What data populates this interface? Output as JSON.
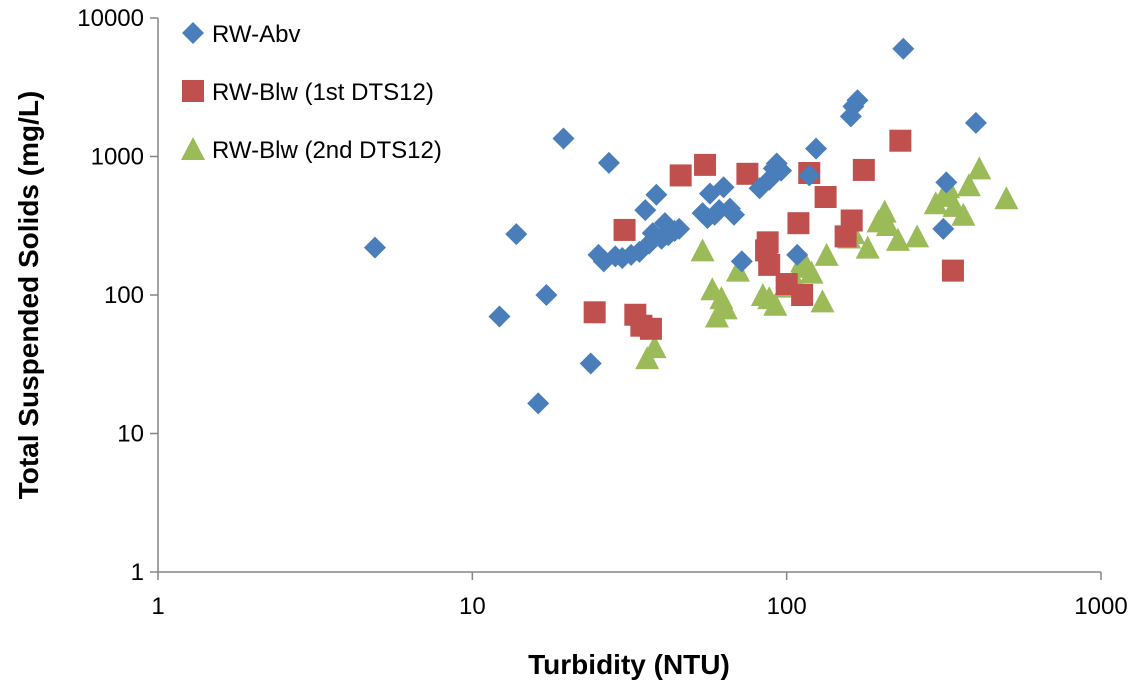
{
  "chart_data": {
    "type": "scatter",
    "title": "",
    "xlabel": "Turbidity (NTU)",
    "ylabel": "Total Suspended Solids (mg/L)",
    "x_scale": "log",
    "y_scale": "log",
    "xlim": [
      1,
      1000
    ],
    "ylim": [
      1,
      10000
    ],
    "x_ticks": [
      1,
      10,
      100,
      1000
    ],
    "x_tick_labels": [
      "1",
      "10",
      "100",
      "1000"
    ],
    "y_ticks": [
      1,
      10,
      100,
      1000,
      10000
    ],
    "y_tick_labels": [
      "1",
      "10",
      "100",
      "1000",
      "10000"
    ],
    "grid": false,
    "legend_position": "top-left",
    "series": [
      {
        "name": "RW-Abv",
        "marker": "diamond",
        "color": "#4a7ebb",
        "points": [
          [
            4.9,
            220
          ],
          [
            12.2,
            70
          ],
          [
            13.8,
            275
          ],
          [
            16.2,
            16.5
          ],
          [
            17.2,
            100
          ],
          [
            19.5,
            1350
          ],
          [
            23.8,
            32
          ],
          [
            25.2,
            195
          ],
          [
            26.2,
            175
          ],
          [
            27.2,
            900
          ],
          [
            28.5,
            190
          ],
          [
            30,
            185
          ],
          [
            32,
            195
          ],
          [
            34,
            205
          ],
          [
            35.5,
            410
          ],
          [
            36.5,
            235
          ],
          [
            37.5,
            280
          ],
          [
            38.5,
            530
          ],
          [
            40,
            255
          ],
          [
            41,
            330
          ],
          [
            42,
            270
          ],
          [
            44,
            290
          ],
          [
            45.5,
            300
          ],
          [
            54,
            390
          ],
          [
            56,
            360
          ],
          [
            57,
            540
          ],
          [
            59,
            380
          ],
          [
            61,
            410
          ],
          [
            63,
            600
          ],
          [
            66,
            420
          ],
          [
            68,
            380
          ],
          [
            72,
            175
          ],
          [
            82,
            590
          ],
          [
            88,
            680
          ],
          [
            91,
            820
          ],
          [
            93,
            890
          ],
          [
            96,
            790
          ],
          [
            108,
            195
          ],
          [
            118,
            730
          ],
          [
            124,
            1140
          ],
          [
            160,
            1950
          ],
          [
            163,
            2300
          ],
          [
            168,
            2550
          ],
          [
            235,
            6000
          ],
          [
            315,
            300
          ],
          [
            322,
            650
          ],
          [
            400,
            1750
          ]
        ]
      },
      {
        "name": "RW-Blw (1st DTS12)",
        "marker": "square",
        "color": "#c0504d",
        "points": [
          [
            24.5,
            75
          ],
          [
            30.5,
            295
          ],
          [
            33,
            72
          ],
          [
            34.5,
            60
          ],
          [
            37,
            57
          ],
          [
            46,
            730
          ],
          [
            55,
            870
          ],
          [
            75,
            750
          ],
          [
            86,
            210
          ],
          [
            87,
            240
          ],
          [
            88,
            165
          ],
          [
            100,
            120
          ],
          [
            109,
            330
          ],
          [
            112,
            100
          ],
          [
            118,
            760
          ],
          [
            133,
            510
          ],
          [
            154,
            265
          ],
          [
            161,
            345
          ],
          [
            176,
            800
          ],
          [
            230,
            1300
          ],
          [
            338,
            150
          ]
        ]
      },
      {
        "name": "RW-Blw (2nd DTS12)",
        "marker": "triangle",
        "color": "#9bbb59",
        "points": [
          [
            36,
            35
          ],
          [
            38,
            42
          ],
          [
            54,
            210
          ],
          [
            58,
            110
          ],
          [
            60,
            70
          ],
          [
            62,
            95
          ],
          [
            64,
            80
          ],
          [
            70,
            150
          ],
          [
            84,
            100
          ],
          [
            88,
            95
          ],
          [
            92,
            85
          ],
          [
            100,
            115
          ],
          [
            106,
            130
          ],
          [
            112,
            175
          ],
          [
            116,
            160
          ],
          [
            120,
            145
          ],
          [
            130,
            90
          ],
          [
            134,
            195
          ],
          [
            158,
            260
          ],
          [
            163,
            280
          ],
          [
            181,
            220
          ],
          [
            196,
            340
          ],
          [
            205,
            400
          ],
          [
            210,
            320
          ],
          [
            226,
            250
          ],
          [
            260,
            265
          ],
          [
            298,
            460
          ],
          [
            318,
            520
          ],
          [
            326,
            600
          ],
          [
            342,
            440
          ],
          [
            365,
            380
          ],
          [
            380,
            620
          ],
          [
            410,
            820
          ],
          [
            500,
            500
          ]
        ]
      }
    ]
  }
}
